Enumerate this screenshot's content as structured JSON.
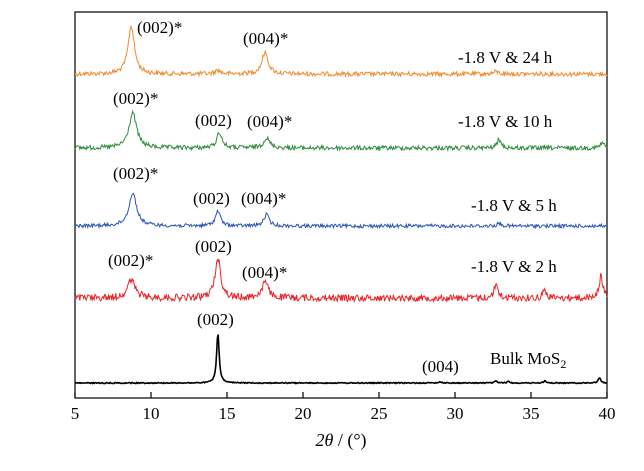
{
  "chart_data": {
    "type": "line",
    "title": "",
    "xlabel": "2θ / (°)",
    "xlabel_parts": {
      "var": "2θ",
      "rest": " / (°)"
    },
    "ylabel": "",
    "xlim": [
      5,
      40
    ],
    "x_ticks": [
      5,
      10,
      15,
      20,
      25,
      30,
      35,
      40
    ],
    "x_tick_labels": [
      "5",
      "10",
      "15",
      "20",
      "25",
      "30",
      "35",
      "40"
    ],
    "grid": false,
    "legend": "none",
    "series": [
      {
        "name": "-1.8 V & 24 h",
        "color": "#f28a2e",
        "peaks": [
          [
            8.7,
            1.0,
            0.25
          ],
          [
            14.4,
            0.08,
            0.2
          ],
          [
            17.5,
            0.45,
            0.25
          ],
          [
            32.7,
            0.05,
            0.2
          ]
        ]
      },
      {
        "name": "-1.8 V & 10 h",
        "color": "#2e8b3a",
        "peaks": [
          [
            8.8,
            1.0,
            0.3
          ],
          [
            14.5,
            0.45,
            0.2
          ],
          [
            17.6,
            0.28,
            0.25
          ],
          [
            32.9,
            0.25,
            0.15
          ],
          [
            39.7,
            0.15,
            0.15
          ]
        ]
      },
      {
        "name": "-1.8 V & 5 h",
        "color": "#2a55b5",
        "peaks": [
          [
            8.8,
            1.0,
            0.3
          ],
          [
            14.4,
            0.45,
            0.2
          ],
          [
            17.6,
            0.35,
            0.2
          ],
          [
            32.9,
            0.08,
            0.15
          ]
        ]
      },
      {
        "name": "-1.8 V & 2 h",
        "color": "#e8262a",
        "peaks": [
          [
            8.7,
            0.45,
            0.3
          ],
          [
            14.4,
            1.0,
            0.22
          ],
          [
            17.5,
            0.4,
            0.25
          ],
          [
            32.7,
            0.35,
            0.15
          ],
          [
            35.9,
            0.2,
            0.15
          ],
          [
            39.6,
            0.55,
            0.15
          ]
        ]
      },
      {
        "name": "Bulk MoS2",
        "color": "#000000",
        "peaks": [
          [
            14.4,
            1.0,
            0.1
          ],
          [
            29.0,
            0.02,
            0.15
          ],
          [
            32.7,
            0.04,
            0.1
          ],
          [
            33.5,
            0.03,
            0.1
          ],
          [
            35.9,
            0.04,
            0.1
          ],
          [
            39.5,
            0.1,
            0.1
          ]
        ]
      }
    ],
    "sample_labels": [
      {
        "text": "-1.8 V & 24 h"
      },
      {
        "text": "-1.8 V & 10 h"
      },
      {
        "text": "-1.8 V & 5 h"
      },
      {
        "text": "-1.8 V & 2 h"
      },
      {
        "text": "Bulk MoS",
        "sub": "2"
      }
    ],
    "annotations": [
      {
        "text": "(002)*"
      },
      {
        "text": "(004)*"
      },
      {
        "text": "(002)*"
      },
      {
        "text": "(002)"
      },
      {
        "text": "(004)*"
      },
      {
        "text": "(002)*"
      },
      {
        "text": "(002)"
      },
      {
        "text": "(004)*"
      },
      {
        "text": "(002)*"
      },
      {
        "text": "(002)"
      },
      {
        "text": "(004)*"
      },
      {
        "text": "(002)"
      },
      {
        "text": "(004)"
      }
    ]
  }
}
